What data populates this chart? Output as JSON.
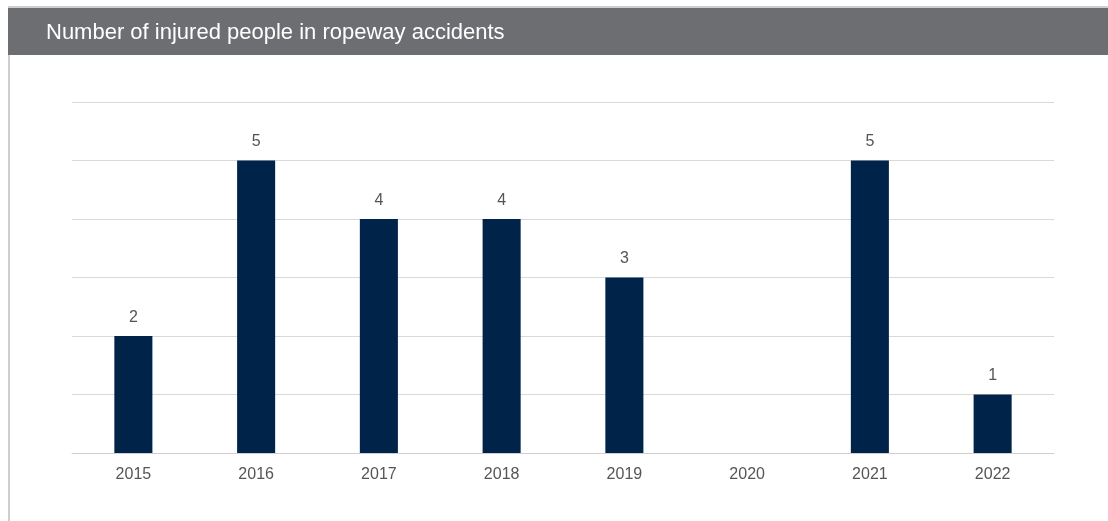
{
  "chart_data": {
    "type": "bar",
    "title": "Number of injured people in ropeway accidents",
    "categories": [
      "2015",
      "2016",
      "2017",
      "2018",
      "2019",
      "2020",
      "2021",
      "2022"
    ],
    "values": [
      2,
      5,
      4,
      4,
      3,
      0,
      5,
      1
    ],
    "value_labels": [
      "2",
      "5",
      "4",
      "4",
      "3",
      null,
      "5",
      "1"
    ],
    "color": "#00234a",
    "ylim": [
      0,
      6
    ],
    "yticks": [
      {
        "value": 0,
        "label": null
      },
      {
        "value": 1,
        "label": null
      },
      {
        "value": 2,
        "label": null
      },
      {
        "value": 3,
        "label": null
      },
      {
        "value": 4,
        "label": null
      },
      {
        "value": 5,
        "label": null
      },
      {
        "value": 6,
        "label": null
      }
    ],
    "grid": "y",
    "tick_labels": "x"
  }
}
